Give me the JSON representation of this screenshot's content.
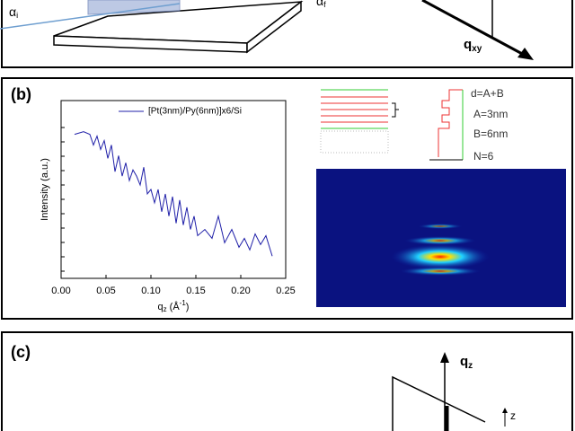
{
  "panel_a": {
    "alpha_i": "α",
    "alpha_i_sub": "i",
    "alpha_f": "α",
    "alpha_f_sub": "f",
    "q_label": "q",
    "q_sub": "xy"
  },
  "panel_b": {
    "label": "(b)",
    "schematic": {
      "d": "d=A+B",
      "a": "A=3nm",
      "b": "B=6nm",
      "n": "N=6"
    }
  },
  "chart_data": {
    "type": "line",
    "x_label": {
      "symbol": "q",
      "sub": "z",
      "unit_open": "(Å",
      "unit_exp": "-1",
      "unit_close": ")"
    },
    "y_label": "Intensity (a.u.)",
    "x": [
      0.015,
      0.025,
      0.032,
      0.036,
      0.04,
      0.044,
      0.048,
      0.052,
      0.056,
      0.06,
      0.064,
      0.068,
      0.072,
      0.076,
      0.08,
      0.084,
      0.088,
      0.092,
      0.096,
      0.1,
      0.104,
      0.108,
      0.112,
      0.116,
      0.12,
      0.124,
      0.128,
      0.132,
      0.136,
      0.14,
      0.144,
      0.148,
      0.152,
      0.16,
      0.168,
      0.175,
      0.182,
      0.19,
      0.198,
      0.204,
      0.21,
      0.216,
      0.222,
      0.228,
      0.235
    ],
    "series": [
      {
        "name": "[Pt(3nm)/Py(6nm)]x6/Si",
        "color": "#1f1fa8",
        "values": [
          162,
          165,
          162,
          150,
          160,
          145,
          155,
          135,
          150,
          120,
          138,
          115,
          130,
          110,
          122,
          115,
          105,
          125,
          95,
          100,
          85,
          100,
          75,
          95,
          70,
          92,
          62,
          88,
          60,
          80,
          55,
          70,
          48,
          55,
          45,
          70,
          40,
          55,
          35,
          45,
          32,
          50,
          38,
          48,
          25
        ]
      }
    ],
    "xlim": [
      0,
      0.25
    ],
    "xticks": [
      {
        "value": 0,
        "label": "0.00"
      },
      0.05,
      {
        "value": 0.1,
        "label": "0.10"
      },
      0.15,
      {
        "value": 0.2,
        "label": "0.20"
      },
      0.25
    ],
    "ylim": [
      0,
      200
    ]
  },
  "panel_c": {
    "label": "(c)",
    "q_label": "q",
    "q_sub": "z",
    "z": "z"
  }
}
